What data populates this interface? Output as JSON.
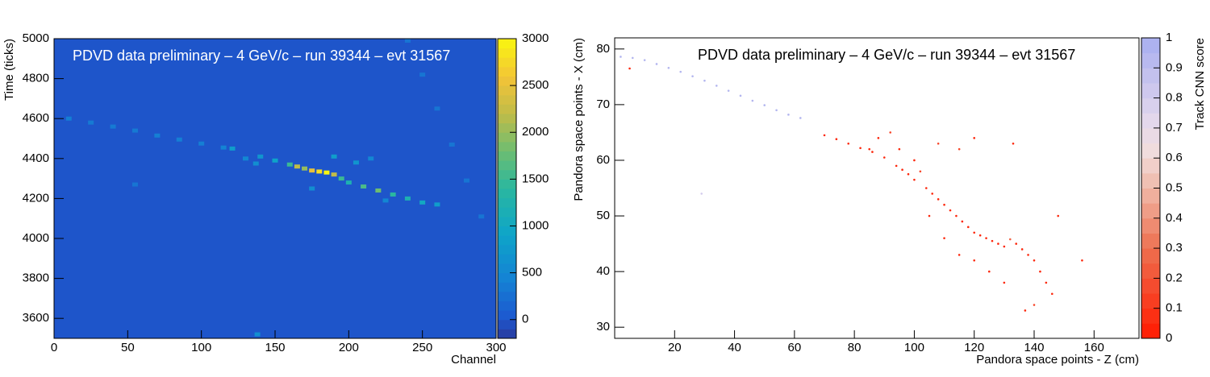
{
  "chart_data": [
    {
      "type": "heatmap",
      "title": "PDVD data preliminary – 4 GeV/c – run 39344 – evt 31567",
      "x_label": "Channel",
      "y_label": "Time (ticks)",
      "xlim": [
        0,
        300
      ],
      "ylim": [
        3500,
        5000
      ],
      "zlim": [
        -200,
        3000
      ],
      "xticks": [
        0,
        50,
        100,
        150,
        200,
        250,
        300
      ],
      "yticks": [
        3600,
        3800,
        4000,
        4200,
        4400,
        4600,
        4800,
        5000
      ],
      "zticks": [
        0,
        500,
        1000,
        1500,
        2000,
        2500,
        3000
      ],
      "hits": {
        "x": [
          10,
          25,
          40,
          55,
          70,
          85,
          100,
          115,
          121,
          130,
          137,
          140,
          150,
          160,
          165,
          170,
          175,
          180,
          185,
          190,
          195,
          200,
          210,
          220,
          230,
          240,
          250,
          260,
          175,
          205,
          215,
          225,
          190,
          240,
          250,
          260,
          270,
          280,
          290,
          55,
          138
        ],
        "y": [
          4600,
          4580,
          4560,
          4540,
          4515,
          4495,
          4475,
          4455,
          4450,
          4400,
          4375,
          4410,
          4390,
          4370,
          4360,
          4350,
          4340,
          4335,
          4330,
          4320,
          4300,
          4280,
          4260,
          4240,
          4220,
          4200,
          4180,
          4170,
          4250,
          4380,
          4400,
          4190,
          4410,
          4990,
          4820,
          4650,
          4470,
          4290,
          4110,
          4270,
          3520
        ],
        "z": [
          400,
          350,
          350,
          350,
          400,
          400,
          400,
          450,
          800,
          500,
          600,
          700,
          900,
          1500,
          2200,
          2000,
          2500,
          2800,
          3000,
          2200,
          1500,
          1200,
          1600,
          1800,
          1400,
          1200,
          1000,
          800,
          600,
          700,
          500,
          500,
          800,
          300,
          300,
          300,
          300,
          300,
          300,
          300,
          600
        ]
      }
    },
    {
      "type": "scatter",
      "title": "PDVD data preliminary – 4 GeV/c – run 39344 – evt 31567",
      "x_label": "Pandora space points - Z (cm)",
      "y_label": "Pandora space points - X (cm)",
      "z_label": "Track CNN score",
      "xlim": [
        0,
        175
      ],
      "ylim": [
        28,
        82
      ],
      "zlim": [
        0,
        1
      ],
      "xticks": [
        20,
        40,
        60,
        80,
        100,
        120,
        140,
        160
      ],
      "yticks": [
        30,
        40,
        50,
        60,
        70,
        80
      ],
      "zticks": [
        0,
        0.1,
        0.2,
        0.3,
        0.4,
        0.5,
        0.6,
        0.7,
        0.8,
        0.9,
        1
      ],
      "points": {
        "x": [
          2,
          6,
          10,
          14,
          18,
          22,
          26,
          30,
          34,
          38,
          42,
          46,
          50,
          54,
          58,
          62,
          5,
          29,
          70,
          74,
          78,
          82,
          86,
          90,
          92,
          94,
          96,
          98,
          100,
          102,
          104,
          106,
          108,
          110,
          112,
          114,
          116,
          118,
          120,
          122,
          124,
          126,
          128,
          130,
          132,
          134,
          136,
          138,
          140,
          142,
          144,
          146,
          140,
          137,
          130,
          125,
          120,
          115,
          110,
          105,
          100,
          95,
          115,
          120,
          133,
          148,
          156,
          108,
          85,
          88
        ],
        "y": [
          78.6,
          78.4,
          78.0,
          77.3,
          76.6,
          75.9,
          75.1,
          74.3,
          73.4,
          72.5,
          71.6,
          70.7,
          69.9,
          69.0,
          68.2,
          67.6,
          76.5,
          54,
          64.5,
          63.8,
          63,
          62.2,
          61.5,
          60.5,
          65,
          59,
          58.3,
          57.5,
          56.5,
          58,
          55,
          54,
          53,
          52,
          51,
          50,
          49,
          48,
          47,
          46.5,
          46,
          45.5,
          45,
          44.5,
          45.8,
          45,
          44,
          43,
          42,
          40,
          38,
          36,
          34,
          33,
          38,
          40,
          42,
          43,
          46,
          50,
          60,
          62,
          62,
          64,
          63,
          50,
          42,
          63,
          62,
          64
        ],
        "score": [
          0.95,
          0.95,
          0.95,
          0.95,
          0.95,
          0.95,
          0.95,
          0.95,
          0.95,
          0.95,
          0.95,
          0.95,
          0.95,
          0.95,
          0.95,
          0.95,
          0.05,
          0.8,
          0.05,
          0.05,
          0.05,
          0.05,
          0.05,
          0.05,
          0.15,
          0.05,
          0.05,
          0.05,
          0.05,
          0.15,
          0.05,
          0.05,
          0.05,
          0.05,
          0.05,
          0.05,
          0.05,
          0.05,
          0.05,
          0.05,
          0.05,
          0.05,
          0.05,
          0.05,
          0.25,
          0.05,
          0.05,
          0.05,
          0.05,
          0.05,
          0.05,
          0.05,
          0.15,
          0.05,
          0.05,
          0.05,
          0.05,
          0.05,
          0.05,
          0.05,
          0.05,
          0.05,
          0.15,
          0.05,
          0.05,
          0.05,
          0.05,
          0.15,
          0.05,
          0.05
        ]
      }
    }
  ]
}
